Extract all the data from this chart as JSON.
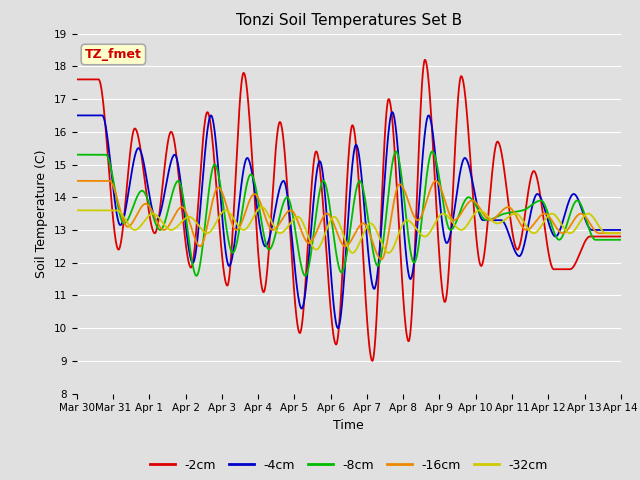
{
  "title": "Tonzi Soil Temperatures Set B",
  "xlabel": "Time",
  "ylabel": "Soil Temperature (C)",
  "annotation_label": "TZ_fmet",
  "annotation_color": "#cc0000",
  "annotation_bg": "#ffffcc",
  "annotation_border": "#aaaaaa",
  "ylim": [
    8.0,
    19.0
  ],
  "yticks": [
    8.0,
    9.0,
    10.0,
    11.0,
    12.0,
    13.0,
    14.0,
    15.0,
    16.0,
    17.0,
    18.0,
    19.0
  ],
  "xtick_labels": [
    "Mar 30",
    "Mar 31",
    "Apr 1",
    "Apr 2",
    "Apr 3",
    "Apr 4",
    "Apr 5",
    "Apr 6",
    "Apr 7",
    "Apr 8",
    "Apr 9",
    "Apr 10",
    "Apr 11",
    "Apr 12",
    "Apr 13",
    "Apr 14"
  ],
  "n_points": 1500,
  "days": 15,
  "bg_color": "#e0e0e0",
  "plot_bg_color": "#e0e0e0",
  "grid_color": "#ffffff",
  "series": [
    {
      "label": "-2cm",
      "color": "#dd0000",
      "peaks": [
        17.6,
        12.4,
        16.1,
        12.9,
        16.0,
        11.85,
        16.6,
        11.3,
        17.8,
        11.1,
        16.3,
        9.85,
        15.4,
        9.5,
        16.2,
        9.0,
        17.0,
        9.6,
        18.2,
        10.8,
        17.7,
        11.9,
        15.7,
        12.4,
        14.8,
        11.8,
        11.8,
        12.8
      ],
      "peak_times": [
        0.6,
        1.15,
        1.6,
        2.15,
        2.6,
        3.15,
        3.6,
        4.15,
        4.6,
        5.15,
        5.6,
        6.15,
        6.6,
        7.15,
        7.6,
        8.15,
        8.6,
        9.15,
        9.6,
        10.15,
        10.6,
        11.15,
        11.6,
        12.15,
        12.6,
        13.15,
        13.6,
        14.15
      ]
    },
    {
      "label": "-4cm",
      "color": "#0000cc",
      "peaks": [
        16.5,
        13.15,
        15.5,
        13.3,
        15.3,
        12.0,
        16.5,
        11.9,
        15.2,
        12.5,
        14.5,
        10.6,
        15.1,
        10.0,
        15.6,
        11.2,
        16.6,
        11.5,
        16.5,
        12.6,
        15.2,
        13.3,
        13.3,
        12.2,
        14.1,
        12.8,
        14.1,
        13.0
      ],
      "peak_times": [
        0.7,
        1.2,
        1.7,
        2.2,
        2.7,
        3.2,
        3.7,
        4.2,
        4.7,
        5.2,
        5.7,
        6.2,
        6.7,
        7.2,
        7.7,
        8.2,
        8.7,
        9.2,
        9.7,
        10.2,
        10.7,
        11.2,
        11.7,
        12.2,
        12.7,
        13.2,
        13.7,
        14.2
      ]
    },
    {
      "label": "-8cm",
      "color": "#00bb00",
      "peaks": [
        15.3,
        13.2,
        14.2,
        13.0,
        14.5,
        11.6,
        15.0,
        12.3,
        14.7,
        12.4,
        14.0,
        11.6,
        14.5,
        11.7,
        14.5,
        11.9,
        15.4,
        12.0,
        15.4,
        13.0,
        14.0,
        13.3,
        13.5,
        13.6,
        13.9,
        12.7,
        13.9,
        12.7
      ],
      "peak_times": [
        0.8,
        1.3,
        1.8,
        2.3,
        2.8,
        3.3,
        3.8,
        4.3,
        4.8,
        5.3,
        5.8,
        6.3,
        6.8,
        7.3,
        7.8,
        8.3,
        8.8,
        9.3,
        9.8,
        10.3,
        10.8,
        11.3,
        11.8,
        12.3,
        12.8,
        13.3,
        13.8,
        14.3
      ]
    },
    {
      "label": "-16cm",
      "color": "#ee8800",
      "peaks": [
        14.5,
        13.1,
        13.8,
        13.0,
        13.7,
        12.5,
        14.3,
        13.0,
        14.1,
        13.0,
        13.6,
        12.6,
        13.5,
        12.5,
        13.2,
        12.1,
        14.4,
        13.3,
        14.5,
        13.3,
        13.9,
        13.3,
        13.7,
        13.0,
        13.5,
        12.9,
        13.5,
        12.9
      ],
      "peak_times": [
        0.9,
        1.4,
        1.9,
        2.4,
        2.9,
        3.4,
        3.9,
        4.4,
        4.9,
        5.4,
        5.9,
        6.4,
        6.9,
        7.4,
        7.9,
        8.4,
        8.9,
        9.4,
        9.9,
        10.4,
        10.9,
        11.4,
        11.9,
        12.4,
        12.9,
        13.4,
        13.9,
        14.4
      ]
    },
    {
      "label": "-32cm",
      "color": "#cccc00",
      "peaks": [
        13.6,
        13.0,
        13.5,
        13.0,
        13.4,
        12.9,
        13.6,
        13.0,
        13.7,
        12.9,
        13.4,
        12.4,
        13.4,
        12.3,
        13.2,
        12.3,
        13.3,
        12.8,
        13.5,
        13.0,
        13.6,
        13.2,
        13.5,
        12.9,
        13.5,
        12.9,
        13.5,
        12.9
      ],
      "peak_times": [
        1.1,
        1.6,
        2.1,
        2.6,
        3.1,
        3.6,
        4.1,
        4.6,
        5.1,
        5.6,
        6.1,
        6.6,
        7.1,
        7.6,
        8.1,
        8.6,
        9.1,
        9.6,
        10.1,
        10.6,
        11.1,
        11.6,
        12.1,
        12.6,
        13.1,
        13.6,
        14.1,
        14.6
      ]
    }
  ]
}
